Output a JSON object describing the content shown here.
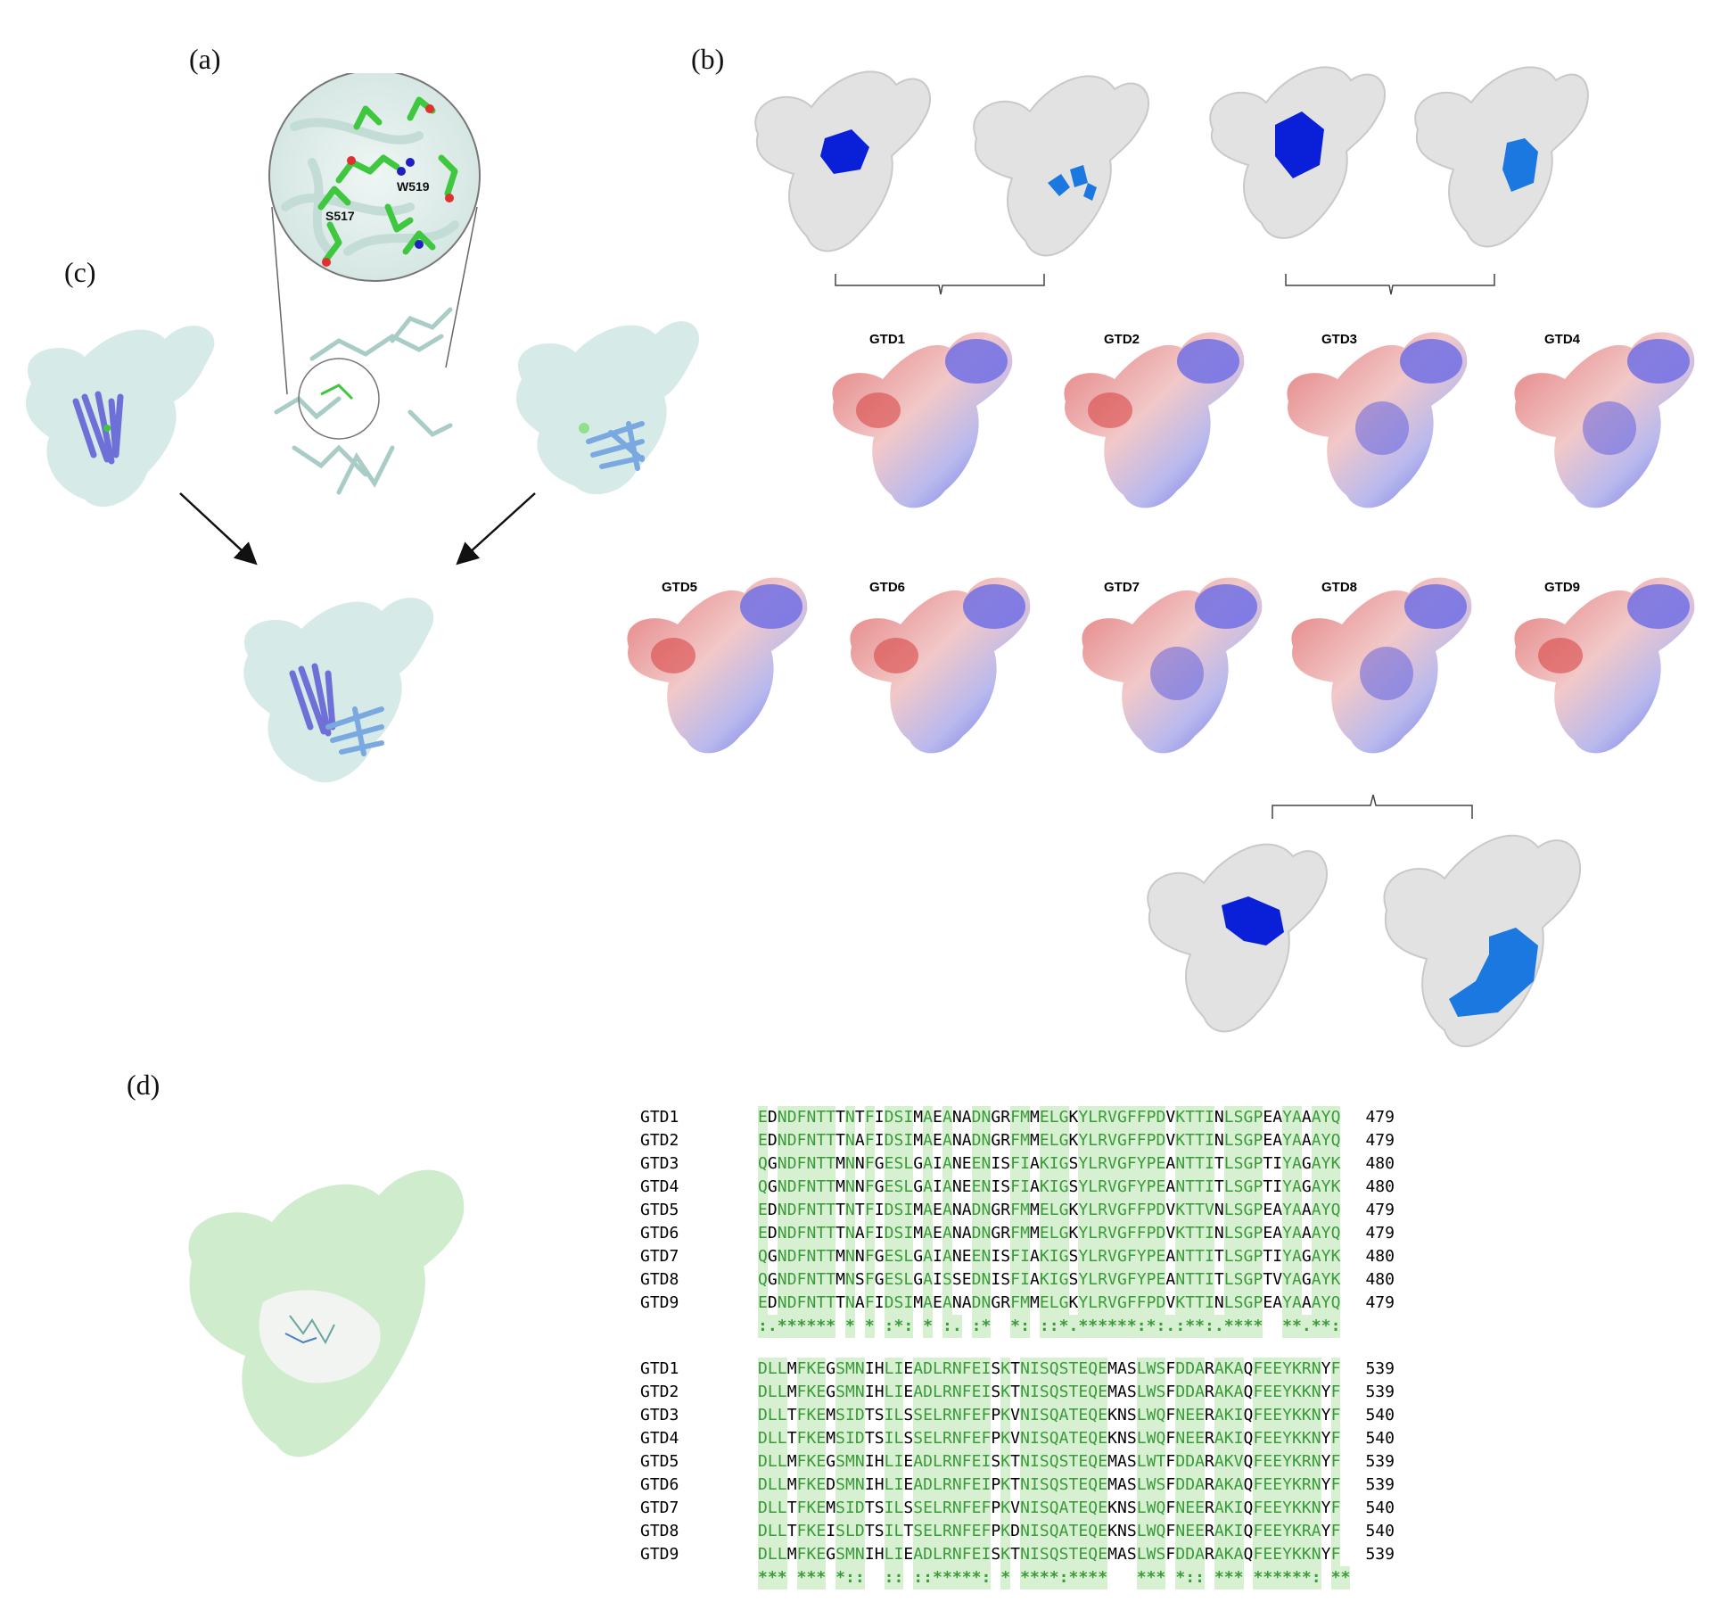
{
  "panels": {
    "a": "(a)",
    "b": "(b)",
    "c": "(c)",
    "d": "(d)"
  },
  "zoom_labels": {
    "s517": "S517",
    "w519": "W519"
  },
  "gtd_row1": [
    "GTD1",
    "GTD2",
    "GTD3",
    "GTD4"
  ],
  "gtd_row2": [
    "GTD5",
    "GTD6",
    "GTD7",
    "GTD8",
    "GTD9"
  ],
  "alignment": {
    "block1": {
      "rows": [
        {
          "name": "GTD1",
          "seq": "EDNDFNTTTNTFIDSIMAEANADNGRFMMELGKYLRVGFFPDVKTTINLSGPEAYAAAYQ",
          "num": "479"
        },
        {
          "name": "GTD2",
          "seq": "EDNDFNTTTNAFIDSIMAEANADNGRFMMELGKYLRVGFFPDVKTTINLSGPEAYAAAYQ",
          "num": "479"
        },
        {
          "name": "GTD3",
          "seq": "QGNDFNTTMNNFGESLGAIANEENISFIAKIGSYLRVGFYPEANTTITLSGPTIYAGAYK",
          "num": "480"
        },
        {
          "name": "GTD4",
          "seq": "QGNDFNTTMNNFGESLGAIANEENISFIAKIGSYLRVGFYPEANTTITLSGPTIYAGAYK",
          "num": "480"
        },
        {
          "name": "GTD5",
          "seq": "EDNDFNTTTNTFIDSIMAEANADNGRFMMELGKYLRVGFFPDVKTTVNLSGPEAYAAAYQ",
          "num": "479"
        },
        {
          "name": "GTD6",
          "seq": "EDNDFNTTTNAFIDSIMAEANADNGRFMMELGKYLRVGFFPDVKTTINLSGPEAYAAAYQ",
          "num": "479"
        },
        {
          "name": "GTD7",
          "seq": "QGNDFNTTMNNFGESLGAIANEENISFIAKIGSYLRVGFYPEANTTITLSGPTIYAGAYK",
          "num": "480"
        },
        {
          "name": "GTD8",
          "seq": "QGNDFNTTMNSFGESLGAISSEDNISFIAKIGSYLRVGFYPEANTTITLSGPTVYAGAYK",
          "num": "480"
        },
        {
          "name": "GTD9",
          "seq": "EDNDFNTTTNAFIDSIMAEANADNGRFMMELGKYLRVGFFPDVKTTINLSGPEAYAAAYQ",
          "num": "479"
        }
      ],
      "consensus": ":.****** * * :*: * :. :*  *: ::*.******:*:.:**:.****  **.**:"
    },
    "block2": {
      "rows": [
        {
          "name": "GTD1",
          "seq": "DLLMFKEGSMNIHLIEADLRNFEISKTNISQSTEQEMASLWSFDDARAKAQFEEYKRNYF",
          "num": "539"
        },
        {
          "name": "GTD2",
          "seq": "DLLMFKEGSMNIHLIEADLRNFEISKTNISQSTEQEMASLWSFDDARAKAQFEEYKKNYF",
          "num": "539"
        },
        {
          "name": "GTD3",
          "seq": "DLLTFKEMSIDTSILSSELRNFEFPKVNISQATEQEKNSLWQFNEERAKIQFEEYKKNYF",
          "num": "540"
        },
        {
          "name": "GTD4",
          "seq": "DLLTFKEMSIDTSILSSELRNFEFPKVNISQATEQEKNSLWQFNEERAKIQFEEYKKNYF",
          "num": "540"
        },
        {
          "name": "GTD5",
          "seq": "DLLMFKEGSMNIHLIEADLRNFEISKTNISQSTEQEMASLWTFDDARAKVQFEEYKRNYF",
          "num": "539"
        },
        {
          "name": "GTD6",
          "seq": "DLLMFKEDSMNIHLIEADLRNFEIPKTNISQSTEQEMASLWSFDDARAKAQFEEYKRNYF",
          "num": "539"
        },
        {
          "name": "GTD7",
          "seq": "DLLTFKEMSIDTSILSSELRNFEFPKVNISQATEQEKNSLWQFNEERAKIQFEEYKKNYF",
          "num": "540"
        },
        {
          "name": "GTD8",
          "seq": "DLLTFKEISLDTSILTSELRNFEFPKDNISQATEQEKNSLWQFNEERAKIQFEEYKRAYF",
          "num": "540"
        },
        {
          "name": "GTD9",
          "seq": "DLLMFKEGSMNIHLIEADLRNFEISKTNISQSTEQEMASLWSFDDARAKAQFEEYKKNYF",
          "num": "539"
        }
      ],
      "consensus": "*** *** *::  :: ::*****: * ****:****   *** *:: *** ******: **"
    }
  },
  "colors": {
    "highlight": "#d8f0d2",
    "highlight_text": "#3a9a3a",
    "dark_blue": "#0a1fd8",
    "light_blue": "#1a78e0",
    "surface": "#dcdcdc"
  }
}
